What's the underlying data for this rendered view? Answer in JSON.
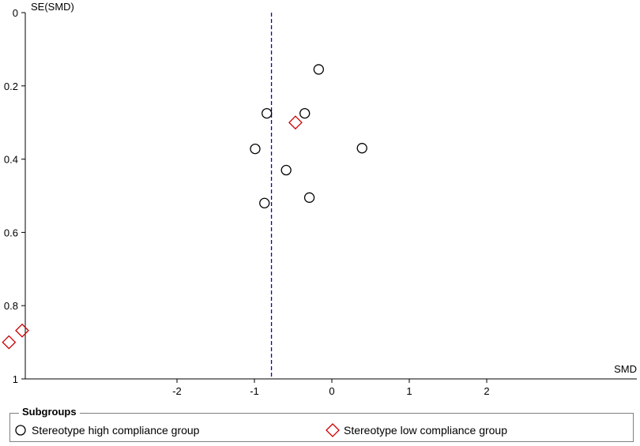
{
  "chart_data": {
    "type": "scatter",
    "title": "",
    "xlabel": "SMD",
    "ylabel": "SE(SMD)",
    "xlim": [
      -4,
      4
    ],
    "ylim": [
      0,
      1
    ],
    "y_reversed": true,
    "x_ticks": [
      "-2",
      "-1",
      "0",
      "1",
      "2"
    ],
    "x_tick_values": [
      -2,
      -1,
      0,
      1,
      2
    ],
    "y_ticks": [
      "0",
      "0.2",
      "0.4",
      "0.6",
      "0.8",
      "1"
    ],
    "y_tick_values": [
      0,
      0.2,
      0.4,
      0.6,
      0.8,
      1.0
    ],
    "pooled_estimate": -0.78,
    "pooled_line_color": "#0000bb",
    "series": [
      {
        "name": "Stereotype high compliance group",
        "marker": "circle",
        "color": "#000000",
        "points": [
          {
            "x": -0.17,
            "y": 0.155
          },
          {
            "x": -0.84,
            "y": 0.275
          },
          {
            "x": -0.35,
            "y": 0.275
          },
          {
            "x": -0.99,
            "y": 0.372
          },
          {
            "x": 0.39,
            "y": 0.37
          },
          {
            "x": -0.59,
            "y": 0.43
          },
          {
            "x": -0.29,
            "y": 0.505
          },
          {
            "x": -0.87,
            "y": 0.52
          }
        ]
      },
      {
        "name": "Stereotype low compliance group",
        "marker": "diamond",
        "color": "#cc0000",
        "points": [
          {
            "x": -0.47,
            "y": 0.3
          },
          {
            "x": -4.0,
            "y": 0.868
          },
          {
            "x": -4.17,
            "y": 0.9
          }
        ]
      }
    ],
    "legend_title": "Subgroups",
    "legend_position": "bottom"
  }
}
